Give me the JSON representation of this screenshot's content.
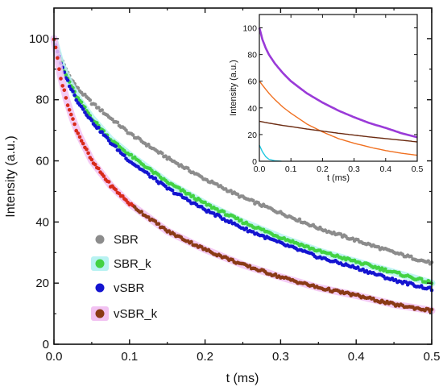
{
  "chart_data": [
    {
      "type": "scatter",
      "xlabel": "t (ms)",
      "ylabel": "Intensity (a.u.)",
      "xlim": [
        0,
        0.5
      ],
      "ylim": [
        0,
        110
      ],
      "xticks": [
        "0.0",
        "0.1",
        "0.2",
        "0.3",
        "0.4",
        "0.5"
      ],
      "yticks": [
        "0",
        "20",
        "40",
        "60",
        "80",
        "100"
      ],
      "x": [
        0,
        0.01,
        0.02,
        0.03,
        0.05,
        0.075,
        0.1,
        0.15,
        0.2,
        0.25,
        0.3,
        0.35,
        0.4,
        0.45,
        0.5
      ],
      "series": [
        {
          "name": "SBR",
          "values": [
            100,
            93,
            88,
            84,
            79,
            74,
            69,
            61,
            54,
            48,
            43,
            38,
            34,
            30,
            26.5
          ]
        },
        {
          "name": "SBR_k",
          "values": [
            100,
            91,
            86,
            81,
            74,
            67,
            62,
            53,
            46,
            40,
            35,
            30.5,
            27,
            23.5,
            20
          ]
        },
        {
          "name": "vSBR",
          "values": [
            100,
            91,
            85,
            80,
            73,
            66,
            60,
            51,
            44,
            38,
            33,
            28.5,
            25,
            21,
            18
          ]
        },
        {
          "name": "vSBR_k",
          "values": [
            100,
            86,
            77,
            70,
            60,
            52,
            46,
            37,
            31,
            26,
            22,
            18.5,
            16,
            13,
            11
          ]
        }
      ],
      "legend_position": "bottom-left",
      "colors": {
        "SBR": "#8c8c8c",
        "SBR_k": "#43d243",
        "vSBR": "#1414d0",
        "vSBR_k": "#8a3a16",
        "vSBR_k_halo": "#f2c2f2",
        "SBR_k_halo": "#b8f2f2",
        "vSBR_k_early": "#d82a1a"
      }
    },
    {
      "type": "line",
      "xlabel": "t (ms)",
      "ylabel": "Intensity (a.u.)",
      "xlim": [
        0,
        0.5
      ],
      "ylim": [
        0,
        110
      ],
      "xticks": [
        "0.0",
        "0.1",
        "0.2",
        "0.3",
        "0.4",
        "0.5"
      ],
      "yticks": [
        "0",
        "20",
        "40",
        "60",
        "80",
        "100"
      ],
      "x": [
        0,
        0.01,
        0.02,
        0.03,
        0.05,
        0.075,
        0.1,
        0.15,
        0.2,
        0.25,
        0.3,
        0.35,
        0.4,
        0.45,
        0.5
      ],
      "series": [
        {
          "values": [
            100,
            91,
            85,
            80,
            73,
            66,
            60,
            51,
            44,
            38,
            33,
            28.5,
            25,
            21,
            18
          ]
        },
        {
          "values": [
            60,
            57,
            54,
            51,
            46,
            40.5,
            36,
            28,
            22,
            17,
            13.5,
            10.5,
            8,
            6,
            4.5
          ]
        },
        {
          "values": [
            30,
            29.5,
            29,
            28.6,
            27.8,
            26.8,
            26,
            24.2,
            22.6,
            21,
            19.6,
            18.2,
            17,
            15.8,
            14.5
          ]
        },
        {
          "values": [
            12,
            7,
            3.5,
            1.5,
            0.3,
            0,
            0,
            0,
            0,
            0,
            0,
            0,
            0,
            0,
            0
          ]
        }
      ],
      "colors": [
        "#9a3ad8",
        "#f07020",
        "#6b2a10",
        "#20c8e0"
      ]
    }
  ]
}
